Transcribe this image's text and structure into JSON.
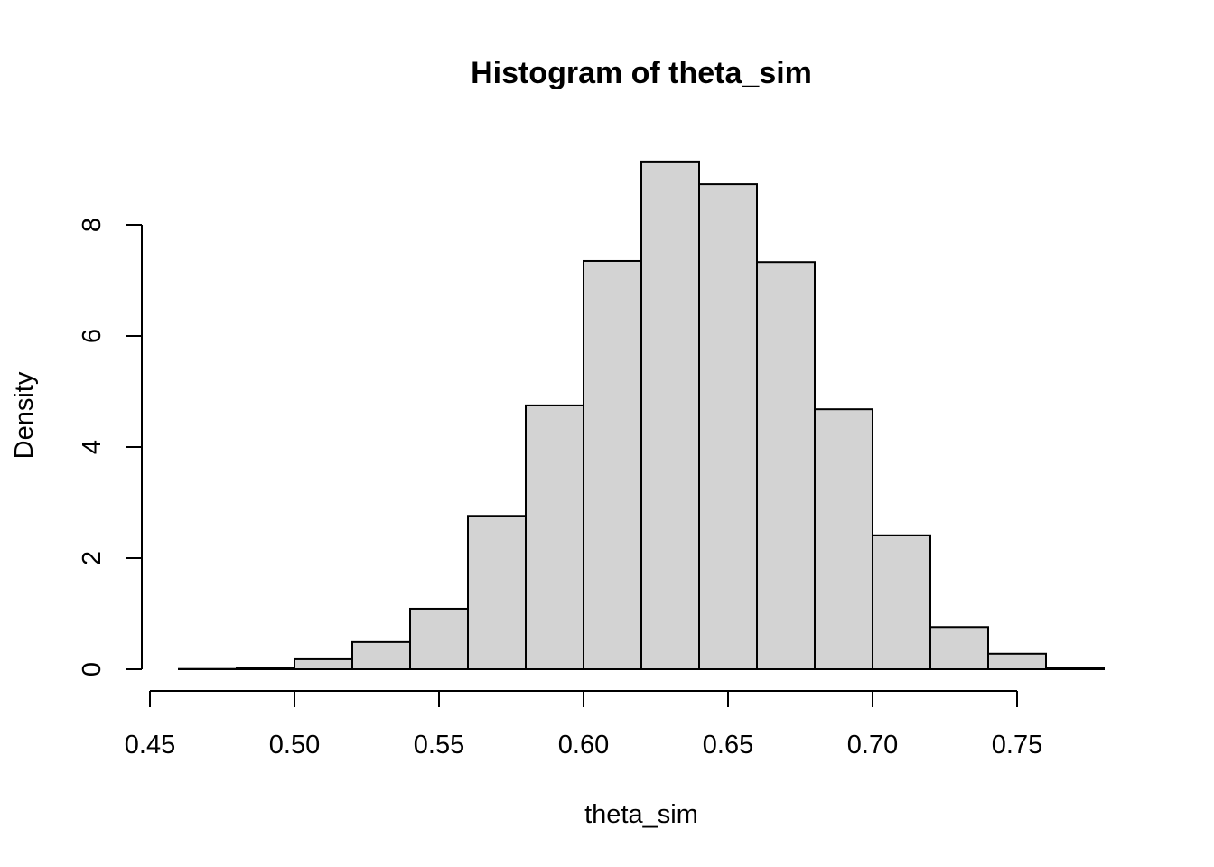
{
  "chart_data": {
    "type": "bar",
    "title": "Histogram of theta_sim",
    "xlabel": "theta_sim",
    "ylabel": "Density",
    "bin_edges": [
      0.46,
      0.48,
      0.5,
      0.52,
      0.54,
      0.56,
      0.58,
      0.6,
      0.62,
      0.64,
      0.66,
      0.68,
      0.7,
      0.72,
      0.74,
      0.76,
      0.78
    ],
    "values": [
      0.005,
      0.02,
      0.18,
      0.49,
      1.09,
      2.76,
      4.75,
      7.35,
      9.14,
      8.73,
      7.33,
      4.68,
      2.41,
      0.76,
      0.28,
      0.03
    ],
    "xticks": [
      "0.45",
      "0.50",
      "0.55",
      "0.60",
      "0.65",
      "0.70",
      "0.75"
    ],
    "yticks": [
      "0",
      "2",
      "4",
      "6",
      "8"
    ],
    "xlim": [
      0.45,
      0.78
    ],
    "ylim": [
      0,
      9.14
    ],
    "grid": false,
    "bar_fill": "#d3d3d3",
    "bar_stroke": "#000000"
  }
}
